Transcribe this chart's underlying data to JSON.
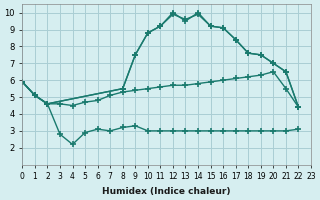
{
  "xlabel": "Humidex (Indice chaleur)",
  "bg_color": "#d6eef0",
  "grid_color": "#aacdd4",
  "line_color": "#1a7a6e",
  "xlim": [
    0,
    23
  ],
  "ylim": [
    1,
    10.5
  ],
  "xticks": [
    0,
    1,
    2,
    3,
    4,
    5,
    6,
    7,
    8,
    9,
    10,
    11,
    12,
    13,
    14,
    15,
    16,
    17,
    18,
    19,
    20,
    21,
    22,
    23
  ],
  "yticks": [
    2,
    3,
    4,
    5,
    6,
    7,
    8,
    9,
    10
  ],
  "line1_x": [
    0,
    1,
    2,
    3,
    4,
    5,
    6,
    7,
    8,
    9,
    10,
    11,
    12,
    13,
    14,
    15,
    16,
    17,
    18,
    19,
    20,
    21,
    22
  ],
  "line1_y": [
    5.9,
    5.1,
    4.6,
    2.8,
    2.2,
    2.9,
    3.1,
    3.0,
    3.2,
    3.3,
    3.0,
    3.0,
    3.0,
    3.0,
    3.0,
    3.0,
    3.0,
    3.0,
    3.0,
    3.0,
    3.0,
    3.0,
    3.1
  ],
  "line2_x": [
    0,
    1,
    2,
    3,
    4,
    5,
    6,
    7,
    8,
    9,
    10,
    11,
    12,
    13,
    14,
    15,
    16,
    17,
    18,
    19,
    20,
    21,
    22
  ],
  "line2_y": [
    5.9,
    5.1,
    4.6,
    4.6,
    4.5,
    4.7,
    4.8,
    5.1,
    5.3,
    5.4,
    5.5,
    5.6,
    5.7,
    5.7,
    5.8,
    5.9,
    6.0,
    6.1,
    6.2,
    6.3,
    6.5,
    5.5,
    4.4
  ],
  "line3_x": [
    0,
    1,
    2,
    8,
    9,
    10,
    11,
    12,
    13,
    14,
    15,
    16,
    17,
    18,
    19,
    20,
    21,
    22
  ],
  "line3_y": [
    5.9,
    5.1,
    4.6,
    5.5,
    7.5,
    8.8,
    9.2,
    9.9,
    9.6,
    9.9,
    9.2,
    9.1,
    8.4,
    7.6,
    7.5,
    7.0,
    6.5,
    4.4
  ],
  "line4_x": [
    0,
    1,
    2,
    8,
    9,
    10,
    11,
    12,
    13,
    14,
    15,
    16,
    17,
    18,
    19,
    20,
    21,
    22
  ],
  "line4_y": [
    5.9,
    5.1,
    4.6,
    5.5,
    7.5,
    8.8,
    9.2,
    10.0,
    9.5,
    10.0,
    9.2,
    9.1,
    8.4,
    7.6,
    7.5,
    7.0,
    6.5,
    4.4
  ]
}
